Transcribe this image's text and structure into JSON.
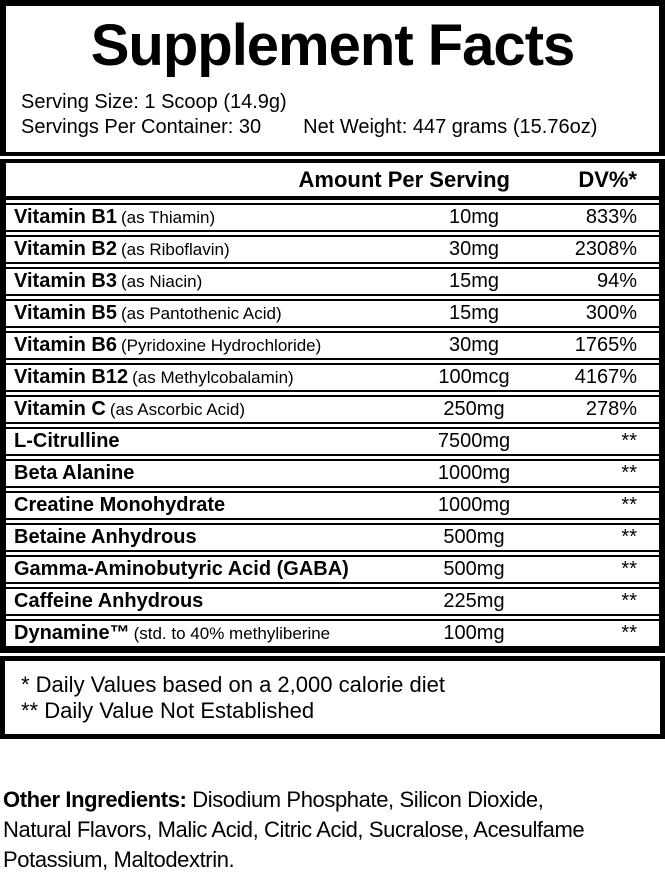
{
  "header": {
    "title": "Supplement Facts",
    "serving_size": "Serving Size: 1 Scoop (14.9g)",
    "servings_per_container": "Servings Per Container: 30",
    "net_weight": "Net Weight: 447 grams (15.76oz)"
  },
  "table": {
    "amount_header": "Amount Per Serving",
    "dv_header": "DV%*",
    "rows": [
      {
        "name": "Vitamin B1",
        "detail": "(as Thiamin)",
        "amount": "10mg",
        "dv": "833%"
      },
      {
        "name": "Vitamin B2",
        "detail": "(as Riboflavin)",
        "amount": "30mg",
        "dv": "2308%"
      },
      {
        "name": "Vitamin B3",
        "detail": "(as Niacin)",
        "amount": "15mg",
        "dv": "94%"
      },
      {
        "name": "Vitamin B5",
        "detail": "(as Pantothenic Acid)",
        "amount": "15mg",
        "dv": "300%"
      },
      {
        "name": "Vitamin B6",
        "detail": "(Pyridoxine Hydrochloride)",
        "amount": "30mg",
        "dv": "1765%"
      },
      {
        "name": "Vitamin B12",
        "detail": "(as Methylcobalamin)",
        "amount": "100mcg",
        "dv": "4167%"
      },
      {
        "name": "Vitamin C",
        "detail": "(as Ascorbic Acid)",
        "amount": "250mg",
        "dv": "278%"
      },
      {
        "name": "L-Citrulline",
        "detail": "",
        "amount": "7500mg",
        "dv": "**"
      },
      {
        "name": "Beta Alanine",
        "detail": "",
        "amount": "1000mg",
        "dv": "**"
      },
      {
        "name": "Creatine Monohydrate",
        "detail": "",
        "amount": "1000mg",
        "dv": "**"
      },
      {
        "name": "Betaine Anhydrous",
        "detail": "",
        "amount": "500mg",
        "dv": "**"
      },
      {
        "name": "Gamma-Aminobutyric Acid (GABA)",
        "detail": "",
        "amount": "500mg",
        "dv": "**"
      },
      {
        "name": "Caffeine Anhydrous",
        "detail": "",
        "amount": "225mg",
        "dv": "**"
      },
      {
        "name": "Dynamine™",
        "detail": "(std. to 40% methyliberine",
        "amount": "100mg",
        "dv": "**"
      }
    ]
  },
  "footnotes": {
    "line1": "* Daily Values based on a 2,000 calorie diet",
    "line2": "** Daily Value Not Established"
  },
  "other_ingredients": {
    "label": "Other Ingredients:",
    "line1_rest": "Disodium Phosphate, Silicon Dioxide,",
    "line2": "Natural Flavors, Malic Acid, Citric Acid, Sucralose, Acesulfame",
    "line3": "Potassium, Maltodextrin."
  },
  "colors": {
    "ink": "#000000",
    "paper": "#ffffff"
  }
}
